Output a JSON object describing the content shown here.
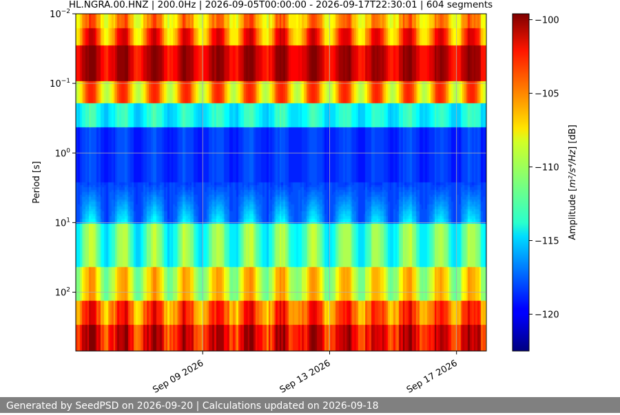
{
  "chart_data": {
    "type": "heatmap",
    "title": "HL.NGRA.00.HNZ | 200.0Hz | 2026-09-05T00:00:00 - 2026-09-17T22:30:01 | 604 segments",
    "ylabel": "Period [s]",
    "y_scale": "log",
    "y_inverted": true,
    "ylim": [
      0.01,
      700
    ],
    "y_ticks": [
      0.01,
      0.1,
      1,
      10,
      100
    ],
    "y_tick_labels": [
      {
        "base": "10",
        "exp": "−2"
      },
      {
        "base": "10",
        "exp": "−1"
      },
      {
        "base": "10",
        "exp": "0"
      },
      {
        "base": "10",
        "exp": "1"
      },
      {
        "base": "10",
        "exp": "2"
      }
    ],
    "x_tick_labels": [
      "Sep 09 2026",
      "Sep 13 2026",
      "Sep 17 2026"
    ],
    "xlim_days": [
      5.0,
      17.94
    ],
    "x_ticks_days": [
      9,
      13,
      17
    ],
    "grid": true,
    "colorbar": {
      "label_prefix": "Amplitude [",
      "label_unit": "m²/s⁴/Hz",
      "label_suffix": "] [dB]",
      "range": [
        -122.5,
        -99.6
      ],
      "ticks": [
        -100,
        -105,
        -110,
        -115,
        -120
      ],
      "tick_labels": [
        "−100",
        "−105",
        "−110",
        "−115",
        "−120"
      ],
      "colormap": "jet"
    }
  },
  "footer": {
    "text": "Generated by SeedPSD on 2026-09-20 | Calculations updated on 2026-09-18"
  }
}
